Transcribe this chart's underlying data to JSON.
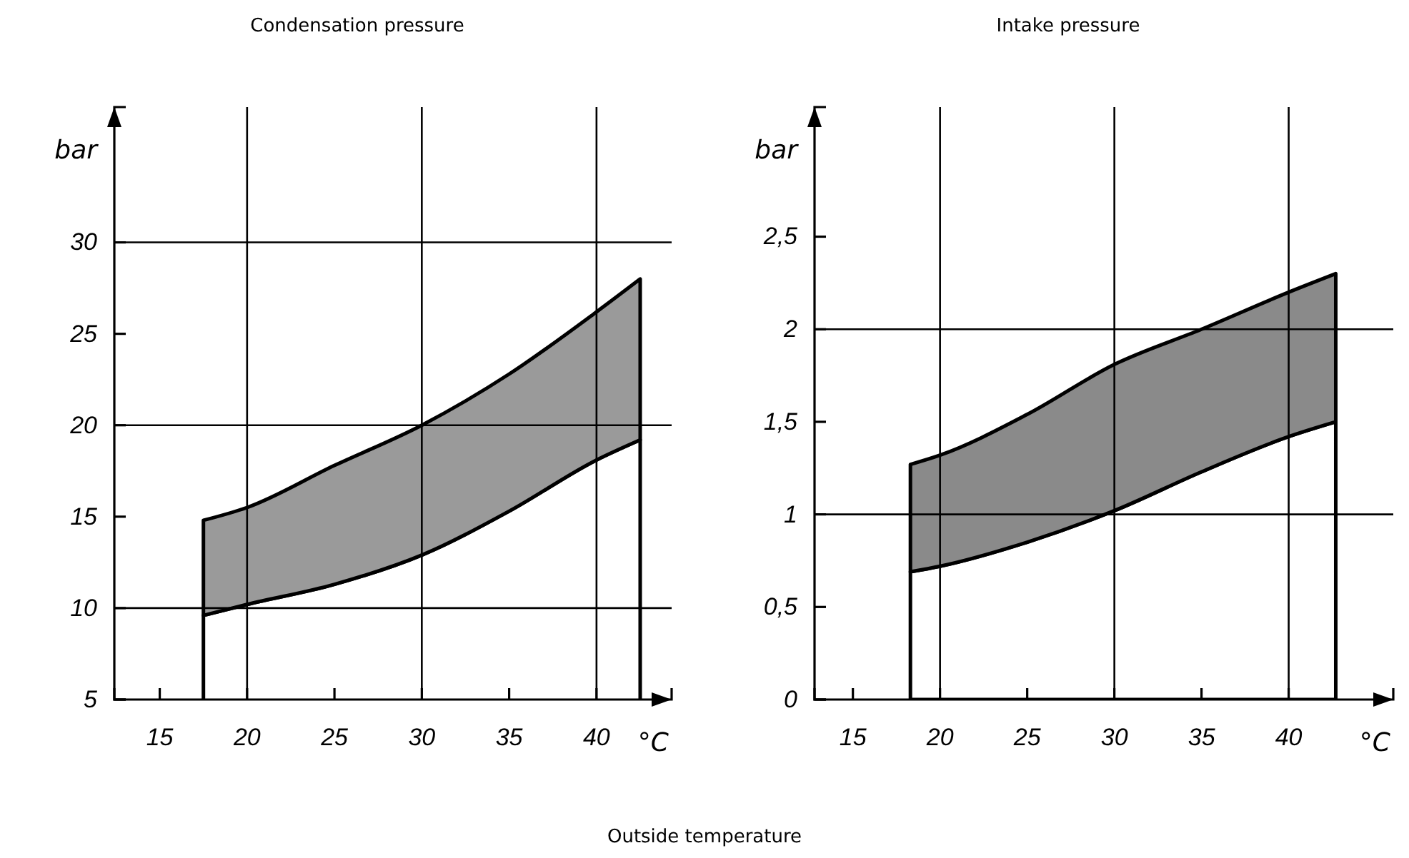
{
  "chart_data": [
    {
      "type": "area",
      "stacked": true,
      "title": "Condensation pressure",
      "xlabel": "°C",
      "ylabel": "bar",
      "x": [
        17.5,
        20,
        25,
        30,
        35,
        40,
        42.5
      ],
      "xlim": [
        12.4,
        44.3
      ],
      "ylim": [
        5,
        37.4
      ],
      "xticks": [
        15,
        20,
        25,
        30,
        35,
        40
      ],
      "yticks": [
        5,
        10,
        15,
        20,
        25,
        30
      ],
      "grid": false,
      "series": [
        {
          "color": "#ffffff",
          "values": [
            9.6,
            10.2,
            11.3,
            12.9,
            15.3,
            18.1,
            19.2
          ]
        },
        {
          "color": "#9a9a9a",
          "values": [
            5.2,
            5.3,
            6.5,
            7.1,
            7.5,
            8.1,
            8.8
          ]
        }
      ],
      "ref_lines": [
        {
          "axis": "x",
          "value": 20
        },
        {
          "axis": "x",
          "value": 30
        },
        {
          "axis": "x",
          "value": 40
        },
        {
          "axis": "y",
          "value": 10
        },
        {
          "axis": "y",
          "value": 20
        },
        {
          "axis": "y",
          "value": 30
        }
      ]
    },
    {
      "type": "area",
      "stacked": true,
      "title": "Intake pressure",
      "xlabel": "°C",
      "ylabel": "bar",
      "x": [
        18.3,
        20,
        25,
        30,
        35,
        40,
        42.7
      ],
      "xlim": [
        12.8,
        46
      ],
      "ylim": [
        0,
        3.2
      ],
      "xticks": [
        15,
        20,
        25,
        30,
        35,
        40
      ],
      "yticks": [
        0,
        {
          "value": 0.5,
          "label": "0,5"
        },
        1,
        {
          "value": 1.5,
          "label": "1,5"
        },
        2,
        {
          "value": 2.5,
          "label": "2,5"
        }
      ],
      "grid": false,
      "series": [
        {
          "color": "#ffffff",
          "values": [
            0.69,
            0.72,
            0.85,
            1.02,
            1.23,
            1.42,
            1.5
          ]
        },
        {
          "color": "#8a8a8a",
          "values": [
            0.58,
            0.6,
            0.69,
            0.79,
            0.77,
            0.78,
            0.8
          ]
        }
      ],
      "ref_lines": [
        {
          "axis": "x",
          "value": 20
        },
        {
          "axis": "x",
          "value": 30
        },
        {
          "axis": "x",
          "value": 40
        },
        {
          "axis": "y",
          "value": 1
        },
        {
          "axis": "y",
          "value": 2
        }
      ],
      "annotations": [
        "Outside temperature"
      ]
    }
  ]
}
